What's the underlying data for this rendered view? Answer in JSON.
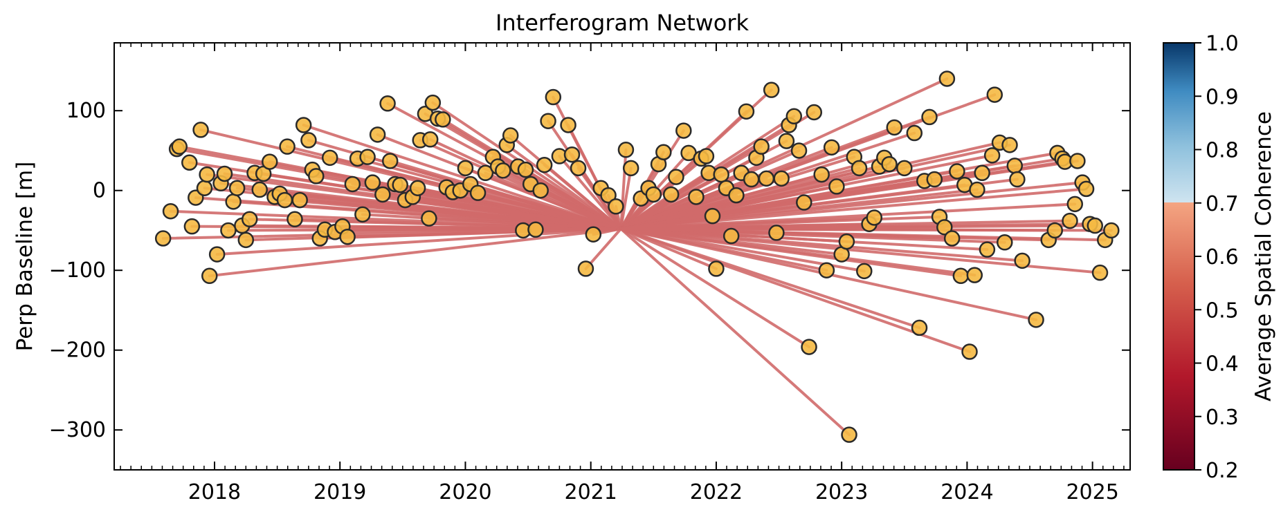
{
  "chart_data": {
    "type": "scatter",
    "title": "Interferogram Network",
    "xlabel": "",
    "ylabel": "Perp Baseline [m]",
    "xlim": [
      2017.2,
      2025.3
    ],
    "ylim": [
      -350,
      185
    ],
    "xticks": [
      "2018",
      "2019",
      "2020",
      "2021",
      "2022",
      "2023",
      "2024",
      "2025"
    ],
    "yticks": [
      100,
      0,
      -100,
      -200,
      -300
    ],
    "grid": false,
    "reference": {
      "x": 2021.24,
      "y": -48
    },
    "connection_color": "#d06a6a",
    "marker_color": "#f5b942",
    "marker_edge": "#2a2a2a",
    "points": [
      [
        2017.59,
        -60
      ],
      [
        2017.65,
        -26
      ],
      [
        2017.7,
        52
      ],
      [
        2017.72,
        55
      ],
      [
        2017.8,
        35
      ],
      [
        2017.82,
        -45
      ],
      [
        2017.85,
        -9
      ],
      [
        2017.89,
        76
      ],
      [
        2017.92,
        3
      ],
      [
        2017.94,
        20
      ],
      [
        2017.96,
        -107
      ],
      [
        2018.02,
        -80
      ],
      [
        2018.05,
        9
      ],
      [
        2018.08,
        21
      ],
      [
        2018.11,
        -50
      ],
      [
        2018.15,
        -14
      ],
      [
        2018.18,
        3
      ],
      [
        2018.22,
        -44
      ],
      [
        2018.25,
        -62
      ],
      [
        2018.28,
        -36
      ],
      [
        2018.32,
        22
      ],
      [
        2018.36,
        1
      ],
      [
        2018.39,
        21
      ],
      [
        2018.44,
        36
      ],
      [
        2018.48,
        -8
      ],
      [
        2018.52,
        -4
      ],
      [
        2018.56,
        -12
      ],
      [
        2018.58,
        55
      ],
      [
        2018.64,
        -36
      ],
      [
        2018.68,
        -12
      ],
      [
        2018.71,
        82
      ],
      [
        2018.75,
        63
      ],
      [
        2018.78,
        26
      ],
      [
        2018.81,
        18
      ],
      [
        2018.84,
        -60
      ],
      [
        2018.88,
        -49
      ],
      [
        2018.92,
        41
      ],
      [
        2018.96,
        -52
      ],
      [
        2019.02,
        -45
      ],
      [
        2019.06,
        -58
      ],
      [
        2019.1,
        8
      ],
      [
        2019.14,
        40
      ],
      [
        2019.18,
        -30
      ],
      [
        2019.22,
        42
      ],
      [
        2019.26,
        10
      ],
      [
        2019.3,
        70
      ],
      [
        2019.34,
        -5
      ],
      [
        2019.38,
        109
      ],
      [
        2019.4,
        37
      ],
      [
        2019.44,
        8
      ],
      [
        2019.48,
        7
      ],
      [
        2019.52,
        -12
      ],
      [
        2019.58,
        -8
      ],
      [
        2019.62,
        3
      ],
      [
        2019.64,
        63
      ],
      [
        2019.68,
        96
      ],
      [
        2019.71,
        -35
      ],
      [
        2019.72,
        64
      ],
      [
        2019.74,
        110
      ],
      [
        2019.78,
        90
      ],
      [
        2019.82,
        89
      ],
      [
        2019.85,
        4
      ],
      [
        2019.9,
        -2
      ],
      [
        2019.96,
        0
      ],
      [
        2020.0,
        28
      ],
      [
        2020.04,
        8
      ],
      [
        2020.1,
        -3
      ],
      [
        2020.16,
        22
      ],
      [
        2020.22,
        42
      ],
      [
        2020.26,
        30
      ],
      [
        2020.3,
        25
      ],
      [
        2020.33,
        57
      ],
      [
        2020.36,
        69
      ],
      [
        2020.42,
        30
      ],
      [
        2020.46,
        -50
      ],
      [
        2020.48,
        26
      ],
      [
        2020.52,
        8
      ],
      [
        2020.56,
        -49
      ],
      [
        2020.6,
        0
      ],
      [
        2020.63,
        32
      ],
      [
        2020.66,
        87
      ],
      [
        2020.7,
        117
      ],
      [
        2020.75,
        43
      ],
      [
        2020.82,
        82
      ],
      [
        2020.85,
        45
      ],
      [
        2020.9,
        28
      ],
      [
        2020.96,
        -98
      ],
      [
        2021.02,
        -55
      ],
      [
        2021.08,
        3
      ],
      [
        2021.14,
        -6
      ],
      [
        2021.2,
        -20
      ],
      [
        2021.28,
        51
      ],
      [
        2021.32,
        28
      ],
      [
        2021.4,
        -10
      ],
      [
        2021.46,
        3
      ],
      [
        2021.5,
        -5
      ],
      [
        2021.54,
        33
      ],
      [
        2021.58,
        48
      ],
      [
        2021.64,
        -5
      ],
      [
        2021.68,
        17
      ],
      [
        2021.74,
        75
      ],
      [
        2021.78,
        47
      ],
      [
        2021.84,
        -8
      ],
      [
        2021.88,
        40
      ],
      [
        2021.92,
        43
      ],
      [
        2021.94,
        22
      ],
      [
        2021.97,
        -32
      ],
      [
        2022.0,
        -98
      ],
      [
        2022.04,
        20
      ],
      [
        2022.08,
        3
      ],
      [
        2022.12,
        -57
      ],
      [
        2022.16,
        -6
      ],
      [
        2022.2,
        22
      ],
      [
        2022.24,
        99
      ],
      [
        2022.28,
        14
      ],
      [
        2022.32,
        41
      ],
      [
        2022.36,
        55
      ],
      [
        2022.4,
        15
      ],
      [
        2022.44,
        126
      ],
      [
        2022.48,
        -53
      ],
      [
        2022.52,
        15
      ],
      [
        2022.56,
        62
      ],
      [
        2022.58,
        82
      ],
      [
        2022.62,
        93
      ],
      [
        2022.66,
        50
      ],
      [
        2022.7,
        -15
      ],
      [
        2022.74,
        -196
      ],
      [
        2022.78,
        98
      ],
      [
        2022.84,
        20
      ],
      [
        2022.88,
        -100
      ],
      [
        2022.92,
        54
      ],
      [
        2022.96,
        5
      ],
      [
        2023.0,
        -80
      ],
      [
        2023.04,
        -64
      ],
      [
        2023.06,
        -306
      ],
      [
        2023.1,
        42
      ],
      [
        2023.14,
        28
      ],
      [
        2023.18,
        -101
      ],
      [
        2023.22,
        -42
      ],
      [
        2023.26,
        -34
      ],
      [
        2023.3,
        30
      ],
      [
        2023.34,
        41
      ],
      [
        2023.38,
        33
      ],
      [
        2023.42,
        79
      ],
      [
        2023.5,
        28
      ],
      [
        2023.58,
        72
      ],
      [
        2023.62,
        -172
      ],
      [
        2023.66,
        12
      ],
      [
        2023.7,
        92
      ],
      [
        2023.74,
        14
      ],
      [
        2023.78,
        -33
      ],
      [
        2023.82,
        -46
      ],
      [
        2023.84,
        140
      ],
      [
        2023.88,
        -60
      ],
      [
        2023.92,
        24
      ],
      [
        2023.95,
        -107
      ],
      [
        2023.98,
        7
      ],
      [
        2024.02,
        -202
      ],
      [
        2024.06,
        -106
      ],
      [
        2024.08,
        1
      ],
      [
        2024.12,
        22
      ],
      [
        2024.16,
        -74
      ],
      [
        2024.2,
        44
      ],
      [
        2024.22,
        120
      ],
      [
        2024.26,
        60
      ],
      [
        2024.3,
        -65
      ],
      [
        2024.34,
        57
      ],
      [
        2024.38,
        31
      ],
      [
        2024.4,
        14
      ],
      [
        2024.44,
        -88
      ],
      [
        2024.55,
        -162
      ],
      [
        2024.65,
        -62
      ],
      [
        2024.7,
        -50
      ],
      [
        2024.72,
        47
      ],
      [
        2024.76,
        40
      ],
      [
        2024.78,
        36
      ],
      [
        2024.82,
        -38
      ],
      [
        2024.86,
        -17
      ],
      [
        2024.88,
        37
      ],
      [
        2024.92,
        10
      ],
      [
        2024.95,
        2
      ],
      [
        2024.98,
        -42
      ],
      [
        2025.02,
        -44
      ],
      [
        2025.06,
        -103
      ],
      [
        2025.1,
        -62
      ],
      [
        2025.15,
        -50
      ]
    ],
    "colorbar": {
      "label": "Average Spatial Coherence",
      "range": [
        0.2,
        1.0
      ],
      "ticks": [
        "1.0",
        "0.9",
        "0.8",
        "0.7",
        "0.6",
        "0.5",
        "0.4",
        "0.3",
        "0.2"
      ],
      "visible_from": 0.7,
      "colormap": "RdBu"
    }
  }
}
